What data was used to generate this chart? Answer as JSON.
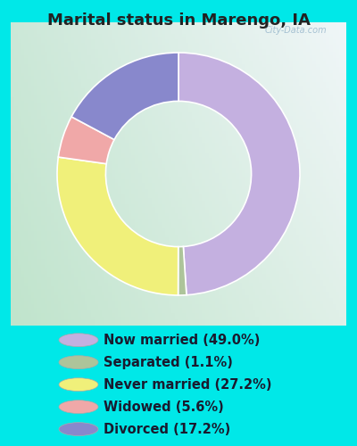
{
  "title": "Marital status in Marengo, IA",
  "slices": [
    49.0,
    1.1,
    27.2,
    5.6,
    17.2
  ],
  "labels": [
    "Now married (49.0%)",
    "Separated (1.1%)",
    "Never married (27.2%)",
    "Widowed (5.6%)",
    "Divorced (17.2%)"
  ],
  "colors": [
    "#c4b0e0",
    "#adc49a",
    "#f0f07a",
    "#f0a8a8",
    "#8888cc"
  ],
  "legend_colors": [
    "#c4b0e0",
    "#adc49a",
    "#f0f07a",
    "#f0a8a8",
    "#8888cc"
  ],
  "bg_cyan": "#00e8e8",
  "title_color": "#222222",
  "title_fontsize": 13,
  "legend_fontsize": 10.5,
  "watermark": "City-Data.com",
  "start_angle": 90,
  "chart_grad_top_right": "#f0f4f8",
  "chart_grad_bottom_left": "#c8e8d0"
}
